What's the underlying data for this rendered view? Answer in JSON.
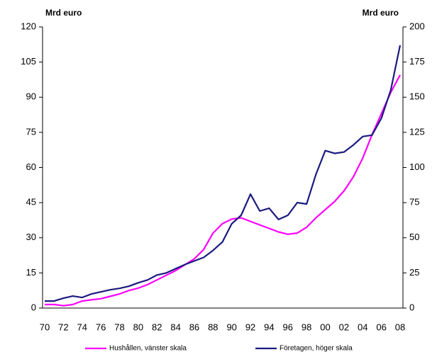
{
  "chart_data": {
    "type": "line",
    "y_label": "Mrd euro",
    "y2_label": "Mrd euro",
    "categories": [
      "70",
      null,
      "72",
      null,
      "74",
      null,
      "76",
      null,
      "78",
      null,
      "80",
      null,
      "82",
      null,
      "84",
      null,
      "86",
      null,
      "88",
      null,
      "90",
      null,
      "92",
      null,
      "94",
      null,
      "96",
      null,
      "98",
      null,
      "00",
      null,
      "02",
      null,
      "04",
      null,
      "06",
      null,
      "08"
    ],
    "series": [
      {
        "name": "Hushållen, vänster skala",
        "color": "#ff00ff",
        "values": [
          1.5,
          1.5,
          1,
          1.5,
          3,
          3.5,
          4,
          5,
          6,
          7.5,
          8.5,
          10,
          12,
          14,
          16,
          18.5,
          21,
          25,
          32,
          36,
          38,
          38.5,
          37,
          35.5,
          34,
          32.5,
          31.5,
          32,
          34.5,
          38.5,
          42,
          45.5,
          50,
          56,
          64,
          74,
          83,
          92,
          99.5
        ]
      },
      {
        "name": "Företagen, höger skala",
        "color": "#1a1a80",
        "axis": "y2",
        "values": [
          5,
          5,
          7,
          8.5,
          7.5,
          10,
          11.5,
          13,
          14,
          15.5,
          18,
          20,
          23.5,
          25,
          28,
          31,
          33.5,
          36,
          41,
          47,
          60,
          66,
          81,
          69,
          71,
          63,
          66,
          75,
          74,
          95,
          112,
          110,
          111,
          116,
          122,
          123,
          135,
          155,
          187
        ]
      }
    ],
    "ylim": [
      0,
      120
    ],
    "yticks": [
      0,
      15,
      30,
      45,
      60,
      75,
      90,
      105,
      120
    ],
    "y2lim": [
      0,
      200
    ],
    "y2ticks": [
      0,
      25,
      50,
      75,
      100,
      125,
      150,
      175,
      200
    ],
    "legend": "bottom"
  }
}
